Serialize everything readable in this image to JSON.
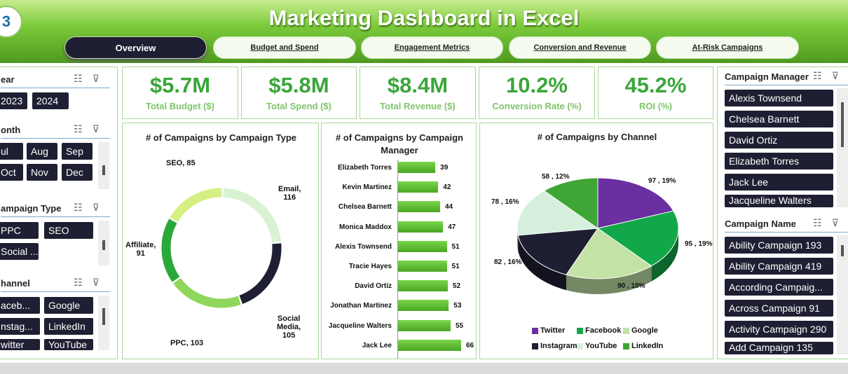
{
  "header": {
    "title": "Marketing Dashboard in Excel",
    "logo_text": "3",
    "tabs": [
      {
        "label": "Overview",
        "active": true
      },
      {
        "label": "Budget and Spend",
        "active": false
      },
      {
        "label": "Engagement Metrics",
        "active": false
      },
      {
        "label": "Conversion and Revenue",
        "active": false
      },
      {
        "label": "At-Risk Campaigns",
        "active": false
      }
    ]
  },
  "slicers_left": {
    "year": {
      "title": "ear",
      "items": [
        "2023",
        "2024"
      ]
    },
    "month": {
      "title": "onth",
      "items": [
        "ul",
        "Aug",
        "Sep",
        "Oct",
        "Nov",
        "Dec"
      ]
    },
    "campaign_type": {
      "title": "ampaign Type",
      "items": [
        "PPC",
        "SEO",
        "Social ..."
      ]
    },
    "channel": {
      "title": "hannel",
      "items": [
        "aceb...",
        "Google",
        "nstag...",
        "LinkedIn",
        "witter",
        "YouTube"
      ]
    }
  },
  "kpis": [
    {
      "value": "$5.7M",
      "label": "Total Budget ($)"
    },
    {
      "value": "$5.8M",
      "label": "Total Spend ($)"
    },
    {
      "value": "$8.4M",
      "label": "Total Revenue ($)"
    },
    {
      "value": "10.2%",
      "label": "Conversion Rate (%)"
    },
    {
      "value": "45.2%",
      "label": "ROI (%)"
    }
  ],
  "slicers_right": {
    "campaign_manager": {
      "title": "Campaign Manager",
      "items": [
        "Alexis Townsend",
        "Chelsea Barnett",
        "David Ortiz",
        "Elizabeth Torres",
        "Jack Lee",
        "Jacqueline Walters"
      ]
    },
    "campaign_name": {
      "title": "Campaign Name",
      "items": [
        "Ability Campaign 193",
        "Ability Campaign 419",
        "According Campaig...",
        "Across Campaign 91",
        "Activity Campaign 290",
        "Add Campaign 135"
      ]
    }
  },
  "colors": {
    "accent": "#3aa63a",
    "dark": "#1f1f33"
  },
  "chart_data": [
    {
      "type": "pie",
      "title": "# of Campaigns by Campaign Type",
      "categories": [
        "Email",
        "Social Media",
        "PPC",
        "Affiliate",
        "SEO"
      ],
      "values": [
        116,
        105,
        103,
        91,
        85
      ],
      "labels": [
        "Email,\n116",
        "Social\nMedia,\n105",
        "PPC, 103",
        "Affiliate,\n91",
        "SEO, 85"
      ],
      "colors": [
        "#d9f2d2",
        "#1f1f33",
        "#8fd65a",
        "#2aa93a",
        "#d6ef82"
      ]
    },
    {
      "type": "bar",
      "title": "# of Campaigns by Campaign Manager",
      "categories": [
        "Elizabeth Torres",
        "Kevin Martinez",
        "Chelsea Barnett",
        "Monica Maddox",
        "Alexis Townsend",
        "Tracie Hayes",
        "David Ortiz",
        "Jonathan Martinez",
        "Jacqueline Walters",
        "Jack Lee"
      ],
      "values": [
        39,
        42,
        44,
        47,
        51,
        51,
        52,
        53,
        55,
        66
      ]
    },
    {
      "type": "pie",
      "title": "# of Campaigns by Channel",
      "categories": [
        "Twitter",
        "Facebook",
        "Google",
        "Instagram",
        "YouTube",
        "LinkedIn"
      ],
      "values": [
        97,
        95,
        90,
        82,
        78,
        58
      ],
      "percents": [
        "19%",
        "19%",
        "18%",
        "16%",
        "16%",
        "12%"
      ],
      "labels": [
        "97 , 19%",
        "95 , 19%",
        "90 , 18%",
        "82 , 16%",
        "78 , 16%",
        "58 , 12%"
      ],
      "colors": [
        "#6a2fa0",
        "#12a84a",
        "#c2e2a6",
        "#1f1f33",
        "#d5f0dc",
        "#3fa535"
      ],
      "legend": [
        "Twitter",
        "Facebook",
        "Google",
        "Instagram",
        "YouTube",
        "LinkedIn"
      ]
    }
  ]
}
